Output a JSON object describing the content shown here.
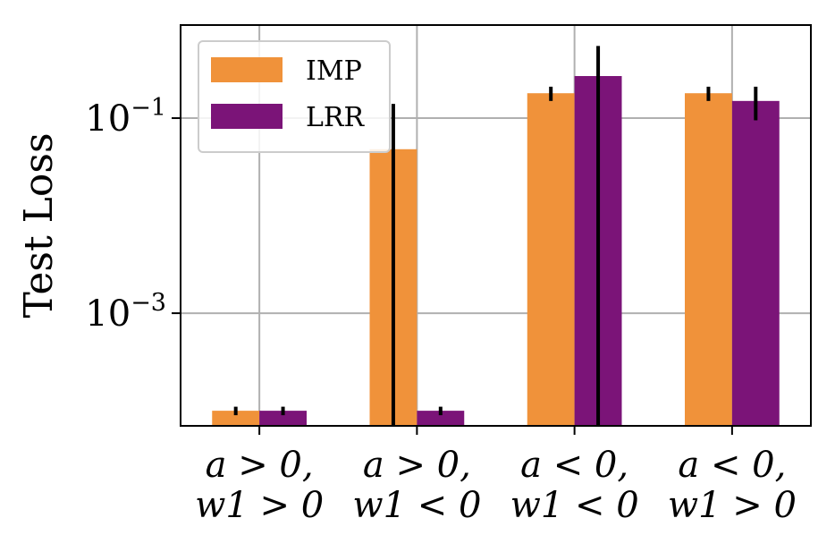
{
  "chart_data": {
    "type": "bar",
    "ylabel": "Test Loss",
    "yscale": "log",
    "ylim": [
      7e-05,
      0.9
    ],
    "ytick_values": [
      0.001,
      0.1
    ],
    "ytick_labels": [
      {
        "base": "10",
        "exp": "−3"
      },
      {
        "base": "10",
        "exp": "−1"
      }
    ],
    "categories": [
      {
        "line1": "a > 0,",
        "line2": "w1 > 0"
      },
      {
        "line1": "a > 0,",
        "line2": "w1 < 0"
      },
      {
        "line1": "a < 0,",
        "line2": "w1 < 0"
      },
      {
        "line1": "a < 0,",
        "line2": "w1 > 0"
      }
    ],
    "series": [
      {
        "name": "IMP",
        "color": "#f0923a",
        "values": [
          0.0001,
          0.048,
          0.18,
          0.18
        ],
        "err_low": [
          9e-05,
          7e-05,
          0.15,
          0.15
        ],
        "err_high": [
          0.00011,
          0.14,
          0.21,
          0.21
        ]
      },
      {
        "name": "LRR",
        "color": "#7b1478",
        "values": [
          0.0001,
          0.0001,
          0.27,
          0.15
        ],
        "err_low": [
          9e-05,
          9e-05,
          7e-05,
          0.095
        ],
        "err_high": [
          0.00011,
          0.00011,
          0.55,
          0.21
        ]
      }
    ],
    "grid": true,
    "legend_position": "top-left"
  }
}
